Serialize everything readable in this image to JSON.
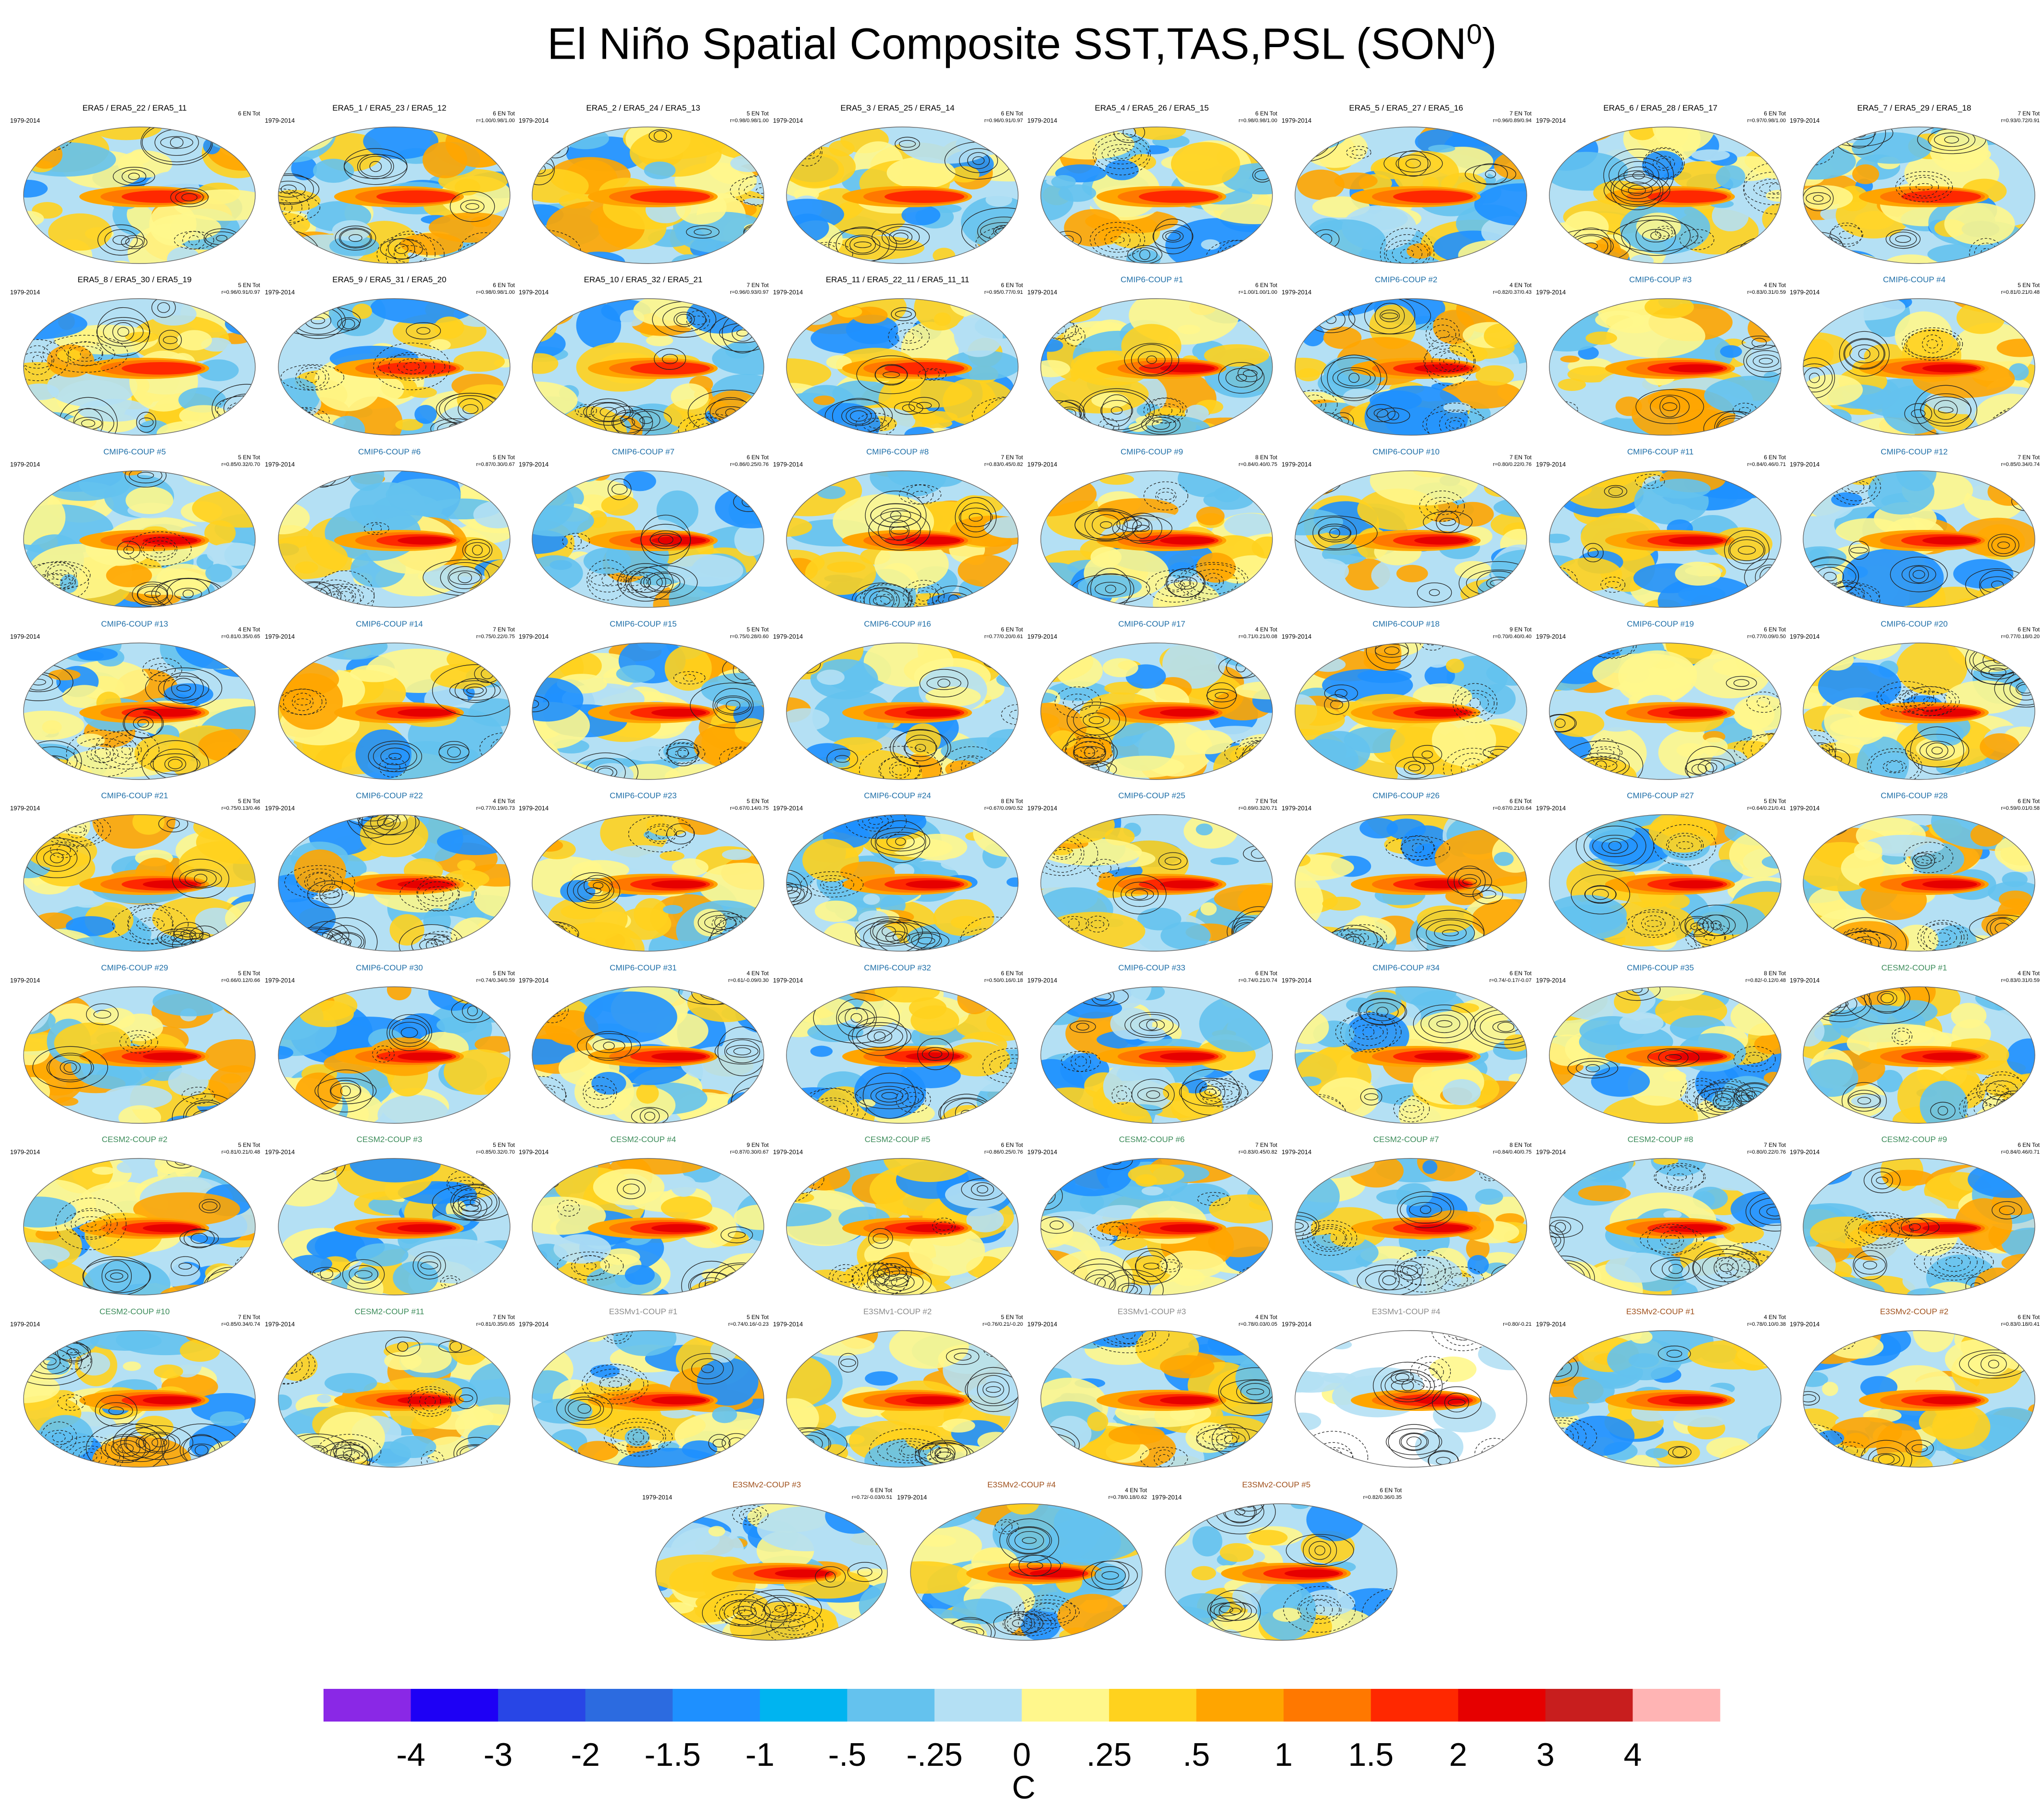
{
  "figure_title": "El Niño Spatial Composite SST,TAS,PSL (SON",
  "figure_title_sup": "0",
  "figure_title_end": ")",
  "chart_data": {
    "type": "heatmap",
    "description_type": "multi-panel spatial composite maps",
    "variables": "SST,TAS,PSL",
    "season": "SON",
    "units": "C",
    "colorbar": {
      "levels": [
        "-4",
        "-3",
        "-2",
        "-1.5",
        "-1",
        "-.5",
        "-.25",
        "0",
        ".25",
        ".5",
        "1",
        "1.5",
        "2",
        "3",
        "4"
      ],
      "colors": [
        "#8a28e6",
        "#1e00f5",
        "#2846e6",
        "#2c6be0",
        "#1e90ff",
        "#00b4f0",
        "#64c2ee",
        "#b4e0f4",
        "#fff78c",
        "#ffd21e",
        "#ffa500",
        "#ff7800",
        "#ff2800",
        "#e60000",
        "#c81e1e",
        "#ffb4b4"
      ],
      "label": "C"
    },
    "panels": [
      {
        "title": "ERA5 / ERA5_22 / ERA5_11",
        "period": "1979-2014",
        "count": "6 EN Tot",
        "corr": "",
        "color": "#000000",
        "style": "obs"
      },
      {
        "title": "ERA5_1 / ERA5_23 / ERA5_12",
        "period": "1979-2014",
        "count": "6 EN Tot",
        "corr": "r=1.00/0.98/1.00",
        "color": "#000000",
        "style": "obs"
      },
      {
        "title": "ERA5_2 / ERA5_24 / ERA5_13",
        "period": "1979-2014",
        "count": "5 EN Tot",
        "corr": "r=0.98/0.98/1.00",
        "color": "#000000",
        "style": "obs"
      },
      {
        "title": "ERA5_3 / ERA5_25 / ERA5_14",
        "period": "1979-2014",
        "count": "6 EN Tot",
        "corr": "r=0.96/0.91/0.97",
        "color": "#000000",
        "style": "obs"
      },
      {
        "title": "ERA5_4 / ERA5_26 / ERA5_15",
        "period": "1979-2014",
        "count": "6 EN Tot",
        "corr": "r=0.98/0.98/1.00",
        "color": "#000000",
        "style": "obs"
      },
      {
        "title": "ERA5_5 / ERA5_27 / ERA5_16",
        "period": "1979-2014",
        "count": "7 EN Tot",
        "corr": "r=0.96/0.89/0.94",
        "color": "#000000",
        "style": "obs"
      },
      {
        "title": "ERA5_6 / ERA5_28 / ERA5_17",
        "period": "1979-2014",
        "count": "6 EN Tot",
        "corr": "r=0.97/0.98/1.00",
        "color": "#000000",
        "style": "obs"
      },
      {
        "title": "ERA5_7 / ERA5_29 / ERA5_18",
        "period": "1979-2014",
        "count": "7 EN Tot",
        "corr": "r=0.93/0.72/0.91",
        "color": "#000000",
        "style": "obs"
      },
      {
        "title": "ERA5_8 / ERA5_30 / ERA5_19",
        "period": "1979-2014",
        "count": "5 EN Tot",
        "corr": "r=0.96/0.91/0.97",
        "color": "#000000",
        "style": "obs"
      },
      {
        "title": "ERA5_9 / ERA5_31 / ERA5_20",
        "period": "1979-2014",
        "count": "6 EN Tot",
        "corr": "r=0.98/0.98/1.00",
        "color": "#000000",
        "style": "obs"
      },
      {
        "title": "ERA5_10 / ERA5_32 / ERA5_21",
        "period": "1979-2014",
        "count": "7 EN Tot",
        "corr": "r=0.96/0.93/0.97",
        "color": "#000000",
        "style": "obs"
      },
      {
        "title": "ERA5_11 / ERA5_22_11 / ERA5_11_11",
        "period": "1979-2014",
        "count": "6 EN Tot",
        "corr": "r=0.95/0.77/0.91",
        "color": "#000000",
        "style": "obs"
      },
      {
        "title": "CMIP6-COUP  #1",
        "period": "1979-2014",
        "count": "6 EN Tot",
        "corr": "r=1.00/1.00/1.00",
        "color": "#1f6fa8",
        "style": "model"
      },
      {
        "title": "CMIP6-COUP  #2",
        "period": "1979-2014",
        "count": "4 EN Tot",
        "corr": "r=0.82/0.37/0.43",
        "color": "#1f6fa8",
        "style": "model"
      },
      {
        "title": "CMIP6-COUP  #3",
        "period": "1979-2014",
        "count": "4 EN Tot",
        "corr": "r=0.83/0.31/0.59",
        "color": "#1f6fa8",
        "style": "model"
      },
      {
        "title": "CMIP6-COUP  #4",
        "period": "1979-2014",
        "count": "5 EN Tot",
        "corr": "r=0.81/0.21/0.48",
        "color": "#1f6fa8",
        "style": "model"
      },
      {
        "title": "CMIP6-COUP  #5",
        "period": "1979-2014",
        "count": "5 EN Tot",
        "corr": "r=0.85/0.32/0.70",
        "color": "#1f6fa8",
        "style": "model"
      },
      {
        "title": "CMIP6-COUP  #6",
        "period": "1979-2014",
        "count": "5 EN Tot",
        "corr": "r=0.87/0.30/0.67",
        "color": "#1f6fa8",
        "style": "model"
      },
      {
        "title": "CMIP6-COUP  #7",
        "period": "1979-2014",
        "count": "6 EN Tot",
        "corr": "r=0.86/0.25/0.76",
        "color": "#1f6fa8",
        "style": "model"
      },
      {
        "title": "CMIP6-COUP  #8",
        "period": "1979-2014",
        "count": "7 EN Tot",
        "corr": "r=0.83/0.45/0.82",
        "color": "#1f6fa8",
        "style": "model"
      },
      {
        "title": "CMIP6-COUP  #9",
        "period": "1979-2014",
        "count": "8 EN Tot",
        "corr": "r=0.84/0.40/0.75",
        "color": "#1f6fa8",
        "style": "model"
      },
      {
        "title": "CMIP6-COUP  #10",
        "period": "1979-2014",
        "count": "7 EN Tot",
        "corr": "r=0.80/0.22/0.76",
        "color": "#1f6fa8",
        "style": "model"
      },
      {
        "title": "CMIP6-COUP  #11",
        "period": "1979-2014",
        "count": "6 EN Tot",
        "corr": "r=0.84/0.46/0.71",
        "color": "#1f6fa8",
        "style": "model"
      },
      {
        "title": "CMIP6-COUP  #12",
        "period": "1979-2014",
        "count": "7 EN Tot",
        "corr": "r=0.85/0.34/0.74",
        "color": "#1f6fa8",
        "style": "model"
      },
      {
        "title": "CMIP6-COUP  #13",
        "period": "1979-2014",
        "count": "4 EN Tot",
        "corr": "r=0.81/0.35/0.65",
        "color": "#1f6fa8",
        "style": "model"
      },
      {
        "title": "CMIP6-COUP  #14",
        "period": "1979-2014",
        "count": "7 EN Tot",
        "corr": "r=0.75/0.22/0.75",
        "color": "#1f6fa8",
        "style": "model"
      },
      {
        "title": "CMIP6-COUP  #15",
        "period": "1979-2014",
        "count": "5 EN Tot",
        "corr": "r=0.75/0.28/0.60",
        "color": "#1f6fa8",
        "style": "model"
      },
      {
        "title": "CMIP6-COUP  #16",
        "period": "1979-2014",
        "count": "6 EN Tot",
        "corr": "r=0.77/0.20/0.61",
        "color": "#1f6fa8",
        "style": "model"
      },
      {
        "title": "CMIP6-COUP  #17",
        "period": "1979-2014",
        "count": "4 EN Tot",
        "corr": "r=0.71/0.21/0.08",
        "color": "#1f6fa8",
        "style": "model"
      },
      {
        "title": "CMIP6-COUP  #18",
        "period": "1979-2014",
        "count": "9 EN Tot",
        "corr": "r=0.70/0.40/0.40",
        "color": "#1f6fa8",
        "style": "model"
      },
      {
        "title": "CMIP6-COUP  #19",
        "period": "1979-2014",
        "count": "6 EN Tot",
        "corr": "r=0.77/0.09/0.50",
        "color": "#1f6fa8",
        "style": "model"
      },
      {
        "title": "CMIP6-COUP  #20",
        "period": "1979-2014",
        "count": "6 EN Tot",
        "corr": "r=0.77/0.18/0.20",
        "color": "#1f6fa8",
        "style": "model"
      },
      {
        "title": "CMIP6-COUP  #21",
        "period": "1979-2014",
        "count": "5 EN Tot",
        "corr": "r=0.75/0.13/0.46",
        "color": "#1f6fa8",
        "style": "model"
      },
      {
        "title": "CMIP6-COUP  #22",
        "period": "1979-2014",
        "count": "4 EN Tot",
        "corr": "r=0.77/0.19/0.73",
        "color": "#1f6fa8",
        "style": "model"
      },
      {
        "title": "CMIP6-COUP  #23",
        "period": "1979-2014",
        "count": "5 EN Tot",
        "corr": "r=0.67/0.14/0.75",
        "color": "#1f6fa8",
        "style": "model"
      },
      {
        "title": "CMIP6-COUP  #24",
        "period": "1979-2014",
        "count": "8 EN Tot",
        "corr": "r=0.67/0.09/0.52",
        "color": "#1f6fa8",
        "style": "model"
      },
      {
        "title": "CMIP6-COUP  #25",
        "period": "1979-2014",
        "count": "7 EN Tot",
        "corr": "r=0.69/0.32/0.71",
        "color": "#1f6fa8",
        "style": "model"
      },
      {
        "title": "CMIP6-COUP  #26",
        "period": "1979-2014",
        "count": "6 EN Tot",
        "corr": "r=0.67/0.21/0.64",
        "color": "#1f6fa8",
        "style": "model"
      },
      {
        "title": "CMIP6-COUP  #27",
        "period": "1979-2014",
        "count": "5 EN Tot",
        "corr": "r=0.64/0.21/0.41",
        "color": "#1f6fa8",
        "style": "model"
      },
      {
        "title": "CMIP6-COUP  #28",
        "period": "1979-2014",
        "count": "6 EN Tot",
        "corr": "r=0.59/0.01/0.58",
        "color": "#1f6fa8",
        "style": "model"
      },
      {
        "title": "CMIP6-COUP  #29",
        "period": "1979-2014",
        "count": "5 EN Tot",
        "corr": "r=0.66/0.12/0.66",
        "color": "#1f6fa8",
        "style": "model"
      },
      {
        "title": "CMIP6-COUP  #30",
        "period": "1979-2014",
        "count": "5 EN Tot",
        "corr": "r=0.74/0.34/0.59",
        "color": "#1f6fa8",
        "style": "model"
      },
      {
        "title": "CMIP6-COUP  #31",
        "period": "1979-2014",
        "count": "4 EN Tot",
        "corr": "r=0.61/-0.09/0.30",
        "color": "#1f6fa8",
        "style": "model"
      },
      {
        "title": "CMIP6-COUP  #32",
        "period": "1979-2014",
        "count": "6 EN Tot",
        "corr": "r=0.50/0.16/0.18",
        "color": "#1f6fa8",
        "style": "model"
      },
      {
        "title": "CMIP6-COUP  #33",
        "period": "1979-2014",
        "count": "6 EN Tot",
        "corr": "r=0.74/0.21/0.74",
        "color": "#1f6fa8",
        "style": "model"
      },
      {
        "title": "CMIP6-COUP  #34",
        "period": "1979-2014",
        "count": "6 EN Tot",
        "corr": "r=0.74/-0.17/-0.07",
        "color": "#1f6fa8",
        "style": "model"
      },
      {
        "title": "CMIP6-COUP  #35",
        "period": "1979-2014",
        "count": "8 EN Tot",
        "corr": "r=0.82/-0.12/0.48",
        "color": "#1f6fa8",
        "style": "model"
      },
      {
        "title": "CESM2-COUP  #1",
        "period": "1979-2014",
        "count": "4 EN Tot",
        "corr": "r=0.83/0.31/0.59",
        "color": "#3c8c5a",
        "style": "model"
      },
      {
        "title": "CESM2-COUP  #2",
        "period": "1979-2014",
        "count": "5 EN Tot",
        "corr": "r=0.81/0.21/0.48",
        "color": "#3c8c5a",
        "style": "model"
      },
      {
        "title": "CESM2-COUP  #3",
        "period": "1979-2014",
        "count": "5 EN Tot",
        "corr": "r=0.85/0.32/0.70",
        "color": "#3c8c5a",
        "style": "model"
      },
      {
        "title": "CESM2-COUP  #4",
        "period": "1979-2014",
        "count": "9 EN Tot",
        "corr": "r=0.87/0.30/0.67",
        "color": "#3c8c5a",
        "style": "model"
      },
      {
        "title": "CESM2-COUP  #5",
        "period": "1979-2014",
        "count": "6 EN Tot",
        "corr": "r=0.86/0.25/0.76",
        "color": "#3c8c5a",
        "style": "model"
      },
      {
        "title": "CESM2-COUP  #6",
        "period": "1979-2014",
        "count": "7 EN Tot",
        "corr": "r=0.83/0.45/0.82",
        "color": "#3c8c5a",
        "style": "model"
      },
      {
        "title": "CESM2-COUP  #7",
        "period": "1979-2014",
        "count": "8 EN Tot",
        "corr": "r=0.84/0.40/0.75",
        "color": "#3c8c5a",
        "style": "model"
      },
      {
        "title": "CESM2-COUP  #8",
        "period": "1979-2014",
        "count": "7 EN Tot",
        "corr": "r=0.80/0.22/0.76",
        "color": "#3c8c5a",
        "style": "model"
      },
      {
        "title": "CESM2-COUP  #9",
        "period": "1979-2014",
        "count": "6 EN Tot",
        "corr": "r=0.84/0.46/0.71",
        "color": "#3c8c5a",
        "style": "model"
      },
      {
        "title": "CESM2-COUP  #10",
        "period": "1979-2014",
        "count": "7 EN Tot",
        "corr": "r=0.85/0.34/0.74",
        "color": "#3c8c5a",
        "style": "model"
      },
      {
        "title": "CESM2-COUP  #11",
        "period": "1979-2014",
        "count": "7 EN Tot",
        "corr": "r=0.81/0.35/0.65",
        "color": "#3c8c5a",
        "style": "model"
      },
      {
        "title": "E3SMv1-COUP  #1",
        "period": "1979-2014",
        "count": "5 EN Tot",
        "corr": "r=0.74/0.16/-0.23",
        "color": "#8c8c8c",
        "style": "model"
      },
      {
        "title": "E3SMv1-COUP  #2",
        "period": "1979-2014",
        "count": "5 EN Tot",
        "corr": "r=0.76/0.21/-0.20",
        "color": "#8c8c8c",
        "style": "model"
      },
      {
        "title": "E3SMv1-COUP  #3",
        "period": "1979-2014",
        "count": "4 EN Tot",
        "corr": "r=0.78/0.03/0.05",
        "color": "#8c8c8c",
        "style": "model"
      },
      {
        "title": "E3SMv1-COUP  #4",
        "period": "1979-2014",
        "count": "",
        "corr": "r=0.80/-0.21",
        "color": "#8c8c8c",
        "style": "blank"
      },
      {
        "title": "E3SMv2-COUP  #1",
        "period": "1979-2014",
        "count": "4 EN Tot",
        "corr": "r=0.78/0.10/0.38",
        "color": "#a0521e",
        "style": "model"
      },
      {
        "title": "E3SMv2-COUP  #2",
        "period": "1979-2014",
        "count": "6 EN Tot",
        "corr": "r=0.83/0.18/0.41",
        "color": "#a0521e",
        "style": "model"
      },
      {
        "title": "E3SMv2-COUP  #3",
        "period": "1979-2014",
        "count": "6 EN Tot",
        "corr": "r=0.72/-0.03/0.51",
        "color": "#a0521e",
        "style": "model"
      },
      {
        "title": "E3SMv2-COUP  #4",
        "period": "1979-2014",
        "count": "4 EN Tot",
        "corr": "r=0.78/0.18/0.62",
        "color": "#a0521e",
        "style": "model"
      },
      {
        "title": "E3SMv2-COUP  #5",
        "period": "1979-2014",
        "count": "6 EN Tot",
        "corr": "r=0.82/0.36/0.35",
        "color": "#a0521e",
        "style": "model"
      }
    ]
  }
}
